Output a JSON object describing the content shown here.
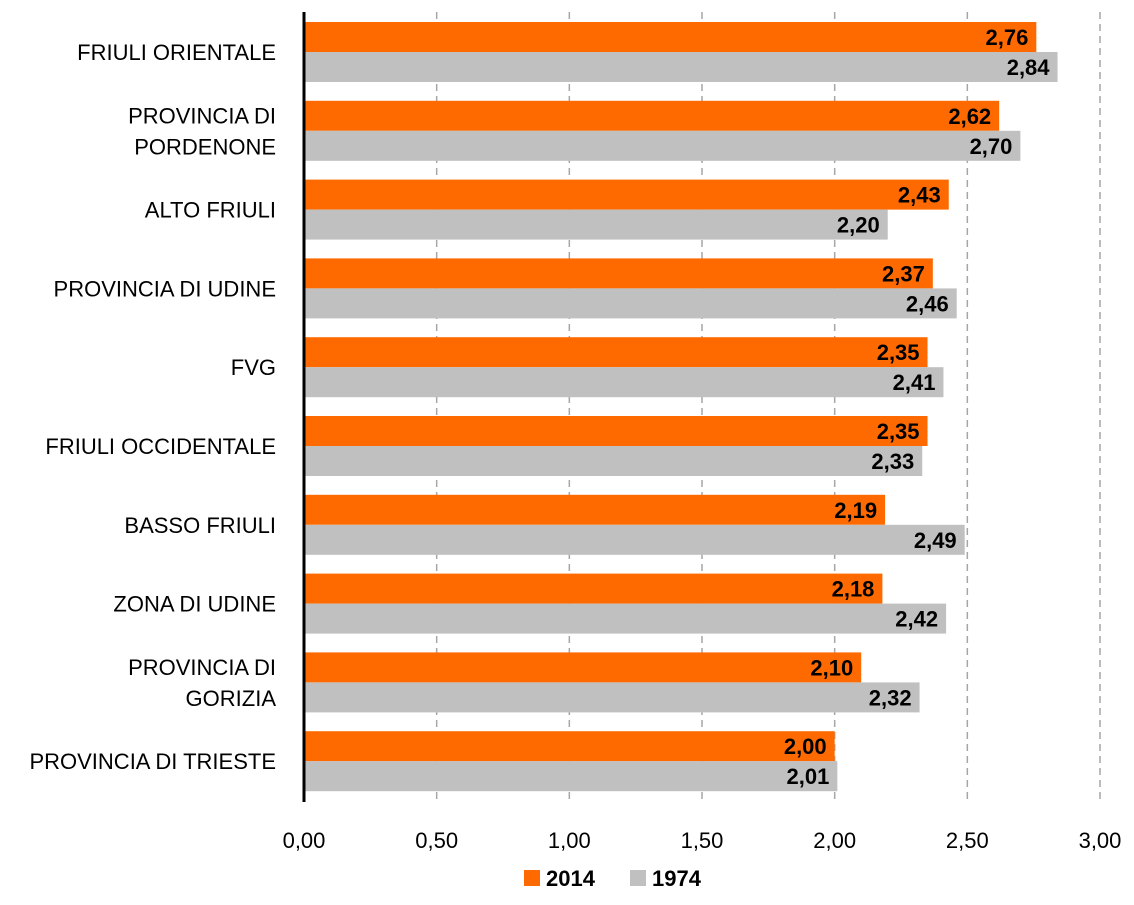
{
  "chart_data": {
    "type": "bar",
    "orientation": "horizontal",
    "categories": [
      "FRIULI ORIENTALE",
      "PROVINCIA DI PORDENONE",
      "ALTO FRIULI",
      "PROVINCIA DI UDINE",
      "FVG",
      "FRIULI OCCIDENTALE",
      "BASSO FRIULI",
      "ZONA DI UDINE",
      "PROVINCIA DI GORIZIA",
      "PROVINCIA DI TRIESTE"
    ],
    "category_lines": [
      [
        "FRIULI ORIENTALE"
      ],
      [
        "PROVINCIA DI",
        "PORDENONE"
      ],
      [
        "ALTO FRIULI"
      ],
      [
        "PROVINCIA DI UDINE"
      ],
      [
        "FVG"
      ],
      [
        "FRIULI OCCIDENTALE"
      ],
      [
        "BASSO FRIULI"
      ],
      [
        "ZONA DI UDINE"
      ],
      [
        "PROVINCIA DI",
        "GORIZIA"
      ],
      [
        "PROVINCIA DI TRIESTE"
      ]
    ],
    "series": [
      {
        "name": "2014",
        "color": "#ff6a00",
        "values": [
          2.76,
          2.62,
          2.43,
          2.37,
          2.35,
          2.35,
          2.19,
          2.18,
          2.1,
          2.0
        ],
        "labels": [
          "2,76",
          "2,62",
          "2,43",
          "2,37",
          "2,35",
          "2,35",
          "2,19",
          "2,18",
          "2,10",
          "2,00"
        ]
      },
      {
        "name": "1974",
        "color": "#c0c0c0",
        "values": [
          2.84,
          2.7,
          2.2,
          2.46,
          2.41,
          2.33,
          2.49,
          2.42,
          2.32,
          2.01
        ],
        "labels": [
          "2,84",
          "2,70",
          "2,20",
          "2,46",
          "2,41",
          "2,33",
          "2,49",
          "2,42",
          "2,32",
          "2,01"
        ]
      }
    ],
    "xlim": [
      0,
      3
    ],
    "ticks": [
      0,
      0.5,
      1,
      1.5,
      2,
      2.5,
      3
    ],
    "tick_labels": [
      "0,00",
      "0,50",
      "1,00",
      "1,50",
      "2,00",
      "2,50",
      "3,00"
    ],
    "grid": "vertical dashed",
    "legend": "bottom",
    "title": "",
    "xlabel": "",
    "ylabel": ""
  }
}
